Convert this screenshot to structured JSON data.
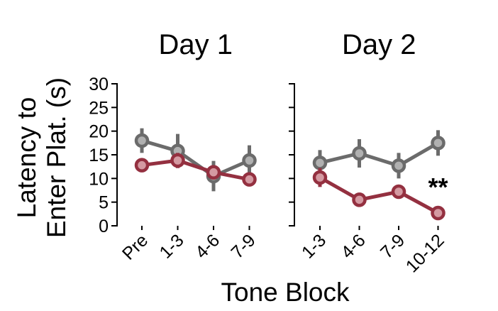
{
  "chart_data": {
    "type": "line",
    "y_axis_label_lines": [
      "Latency to",
      "Enter Plat. (s)"
    ],
    "x_axis_label": "Tone Block",
    "ylim": [
      0,
      30
    ],
    "yticks": [
      0,
      5,
      10,
      15,
      20,
      25,
      30
    ],
    "grid": false,
    "legend": "none",
    "colors": {
      "gray": "#6b6b6b",
      "red": "#943040",
      "marker_fill": "#b0b0b0",
      "marker_fill_red": "#d49aa2"
    },
    "panels": [
      {
        "title": "Day 1",
        "categories": [
          "Pre",
          "1-3",
          "4-6",
          "7-9"
        ],
        "series": [
          {
            "color": "gray",
            "values": [
              18.0,
              15.8,
              10.5,
              13.8
            ],
            "errors": [
              2.6,
              3.6,
              3.2,
              3.2
            ]
          },
          {
            "color": "red",
            "values": [
              12.8,
              13.8,
              11.3,
              9.8
            ],
            "errors": [
              0.5,
              1.6,
              1.5,
              0.8
            ]
          }
        ]
      },
      {
        "title": "Day 2",
        "categories": [
          "1-3",
          "4-6",
          "7-9",
          "10-12"
        ],
        "annotation": {
          "text": "**",
          "category_index": 3
        },
        "series": [
          {
            "color": "gray",
            "values": [
              13.3,
              15.3,
              12.7,
              17.5
            ],
            "errors": [
              2.7,
              3.0,
              2.7,
              2.7
            ]
          },
          {
            "color": "red",
            "values": [
              10.2,
              5.5,
              7.2,
              2.7
            ],
            "errors": [
              2.0,
              1.5,
              1.2,
              0.4
            ]
          }
        ]
      }
    ]
  }
}
